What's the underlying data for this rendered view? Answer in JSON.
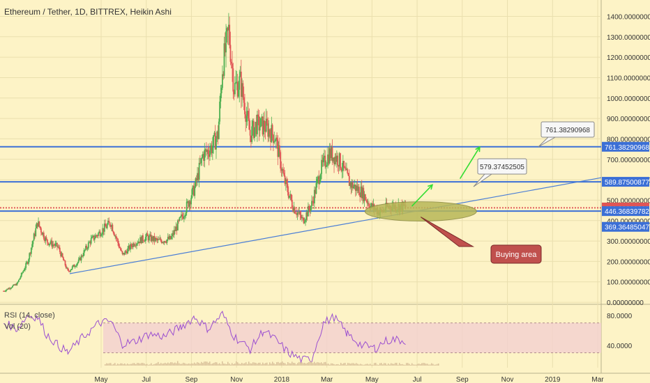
{
  "title": "Ethereum / Tether, 1D, BITTREX, Heikin Ashi",
  "indicators": {
    "rsi_label": "RSI (14, close)",
    "vol_label": "Vol (20)"
  },
  "colors": {
    "background": "#fdf3c6",
    "up": "#4caf50",
    "down": "#e05555",
    "level_line": "#3b6fd6",
    "trendline": "#4a7ed6",
    "rsi_line": "#9b4fd0",
    "rsi_band": "#f3d0d0",
    "callout_fill": "#c0504d",
    "ellipse_fill": "#b8b858",
    "arrow": "#33dd33"
  },
  "chart_data": {
    "type": "candlestick",
    "title": "Ethereum / Tether, 1D, BITTREX, Heikin Ashi",
    "x_tick_labels": [
      "May",
      "Jul",
      "Sep",
      "Nov",
      "2018",
      "Mar",
      "May",
      "Jul",
      "Sep",
      "Nov",
      "2019",
      "Mar"
    ],
    "x_range": [
      "2017-05-01",
      "2019-03-05"
    ],
    "y_tick_labels": [
      "1400.00000000",
      "1300.00000000",
      "1200.00000000",
      "1100.00000000",
      "1000.00000000",
      "900.00000000",
      "800.00000000",
      "700.00000000",
      "600.00000000",
      "500.00000000",
      "400.00000000",
      "300.00000000",
      "200.00000000",
      "100.00000000",
      "0.00000000"
    ],
    "y_ticks": [
      1400,
      1300,
      1200,
      1100,
      1000,
      900,
      800,
      700,
      600,
      500,
      400,
      300,
      200,
      100,
      0
    ],
    "ylim": [
      -10,
      1480
    ],
    "price_path": [
      [
        "2017-05-05",
        55
      ],
      [
        "2017-05-20",
        90
      ],
      [
        "2017-06-01",
        200
      ],
      [
        "2017-06-12",
        390
      ],
      [
        "2017-06-22",
        300
      ],
      [
        "2017-07-05",
        270
      ],
      [
        "2017-07-16",
        150
      ],
      [
        "2017-07-28",
        200
      ],
      [
        "2017-08-10",
        300
      ],
      [
        "2017-08-25",
        360
      ],
      [
        "2017-09-02",
        390
      ],
      [
        "2017-09-15",
        230
      ],
      [
        "2017-09-28",
        290
      ],
      [
        "2017-10-12",
        320
      ],
      [
        "2017-10-25",
        300
      ],
      [
        "2017-11-08",
        310
      ],
      [
        "2017-11-22",
        430
      ],
      [
        "2017-12-05",
        560
      ],
      [
        "2017-12-14",
        720
      ],
      [
        "2017-12-24",
        760
      ],
      [
        "2017-12-31",
        820
      ],
      [
        "2018-01-05",
        1150
      ],
      [
        "2018-01-12",
        1330
      ],
      [
        "2018-01-18",
        1050
      ],
      [
        "2018-01-25",
        1080
      ],
      [
        "2018-02-05",
        820
      ],
      [
        "2018-02-12",
        870
      ],
      [
        "2018-02-22",
        860
      ],
      [
        "2018-03-05",
        810
      ],
      [
        "2018-03-15",
        600
      ],
      [
        "2018-03-25",
        470
      ],
      [
        "2018-04-05",
        400
      ],
      [
        "2018-04-15",
        480
      ],
      [
        "2018-04-25",
        650
      ],
      [
        "2018-05-05",
        730
      ],
      [
        "2018-05-15",
        700
      ],
      [
        "2018-05-28",
        580
      ],
      [
        "2018-06-10",
        540
      ],
      [
        "2018-06-20",
        470
      ],
      [
        "2018-07-01",
        440
      ],
      [
        "2018-07-10",
        470
      ],
      [
        "2018-07-20",
        470
      ],
      [
        "2018-07-30",
        465
      ]
    ],
    "horizontal_levels": [
      {
        "value": 761.38290968,
        "label": "761.38290968",
        "color": "#3b6fd6"
      },
      {
        "value": 589.87500877,
        "label": "589.87500877",
        "color": "#3b6fd6"
      },
      {
        "value": 464.011775,
        "label": "464.01177500",
        "color": "#e05555"
      },
      {
        "value": 461.0,
        "label": "461.00000000",
        "color": "#e05555"
      },
      {
        "value": 446.36839782,
        "label": "446.36839782",
        "color": "#3b6fd6"
      }
    ],
    "extra_axis_label": {
      "value": 369.36485047,
      "label": "369.36485047",
      "color": "#3b6fd6"
    },
    "trendline": {
      "from": [
        "2017-07-18",
        140
      ],
      "to": [
        "2019-03-05",
        610
      ]
    },
    "annotations": [
      {
        "type": "callout",
        "text": "761.38290968",
        "value": 761.38290968
      },
      {
        "type": "callout",
        "text": "579.37452505",
        "value": 579.37452505
      },
      {
        "type": "callout",
        "text": "Buying area"
      },
      {
        "type": "ellipse",
        "center": [
          "2018-08-15",
          445
        ],
        "y_span": [
          400,
          495
        ]
      },
      {
        "type": "arrow",
        "from": [
          "2018-08-05",
          470
        ],
        "to": [
          "2018-08-28",
          575
        ]
      },
      {
        "type": "arrow",
        "from": [
          "2018-09-28",
          605
        ],
        "to": [
          "2018-10-20",
          760
        ]
      }
    ],
    "rsi": {
      "y_tick_labels": [
        "80.0000",
        "40.0000"
      ],
      "y_ticks": [
        80,
        40
      ],
      "ylim": [
        10,
        95
      ],
      "band": [
        30,
        70
      ],
      "path": [
        [
          "2017-05-05",
          70
        ],
        [
          "2017-05-20",
          62
        ],
        [
          "2017-06-01",
          80
        ],
        [
          "2017-06-12",
          78
        ],
        [
          "2017-06-22",
          55
        ],
        [
          "2017-07-05",
          40
        ],
        [
          "2017-07-16",
          30
        ],
        [
          "2017-08-01",
          50
        ],
        [
          "2017-08-20",
          70
        ],
        [
          "2017-09-02",
          72
        ],
        [
          "2017-09-15",
          42
        ],
        [
          "2017-09-28",
          45
        ],
        [
          "2017-10-15",
          55
        ],
        [
          "2017-11-01",
          52
        ],
        [
          "2017-11-20",
          65
        ],
        [
          "2017-12-05",
          78
        ],
        [
          "2017-12-20",
          62
        ],
        [
          "2018-01-05",
          82
        ],
        [
          "2018-01-18",
          52
        ],
        [
          "2018-02-05",
          35
        ],
        [
          "2018-02-20",
          60
        ],
        [
          "2018-03-05",
          48
        ],
        [
          "2018-03-20",
          30
        ],
        [
          "2018-04-05",
          20
        ],
        [
          "2018-04-15",
          22
        ],
        [
          "2018-04-28",
          70
        ],
        [
          "2018-05-10",
          78
        ],
        [
          "2018-05-25",
          55
        ],
        [
          "2018-06-10",
          40
        ],
        [
          "2018-06-25",
          36
        ],
        [
          "2018-07-05",
          45
        ],
        [
          "2018-07-15",
          48
        ],
        [
          "2018-07-30",
          46
        ]
      ]
    }
  }
}
